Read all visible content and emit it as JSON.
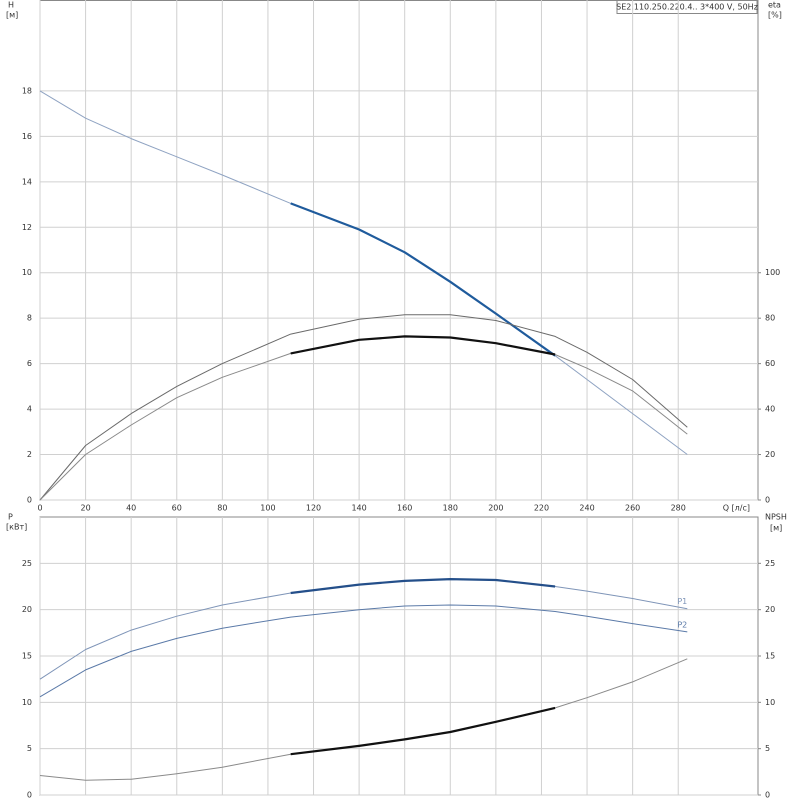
{
  "chart_data": [
    {
      "type": "line",
      "title": "SE2.110.250.220.4.. 3*400 V, 50Hz",
      "y_label": "H",
      "y_unit": "[м]",
      "y2_label": "eta",
      "y2_unit": "[%]",
      "x_label": "Q [л/с]",
      "x": [
        0,
        20,
        40,
        60,
        80,
        110,
        140,
        160,
        180,
        200,
        226,
        240,
        260,
        284
      ],
      "xlim": [
        0,
        315
      ],
      "xticks": [
        0,
        20,
        40,
        60,
        80,
        100,
        120,
        140,
        160,
        180,
        200,
        220,
        240,
        260,
        280
      ],
      "ylim": [
        0,
        22
      ],
      "yticks": [
        0,
        2,
        4,
        6,
        8,
        10,
        12,
        14,
        16,
        18
      ],
      "y2lim": [
        0,
        220
      ],
      "y2ticks": [
        0,
        20,
        40,
        60,
        80,
        100
      ],
      "grid": true,
      "duty_range": [
        110,
        226
      ],
      "series": [
        {
          "color": "#8fa3c2",
          "duty_color": "#1f5b9c",
          "values": [
            18,
            16.8,
            15.9,
            15.1,
            14.3,
            13.05,
            11.9,
            10.9,
            9.6,
            8.2,
            6.35,
            5.3,
            3.8,
            2.0
          ]
        },
        {
          "color": "#6a6a6a",
          "axis": "y2",
          "values": [
            0,
            24,
            38,
            50,
            60,
            73,
            79.5,
            81.5,
            81.5,
            79,
            72,
            65,
            53,
            32
          ]
        },
        {
          "color": "#8a8a8a",
          "duty_color": "#111111",
          "axis": "y2",
          "values": [
            0,
            20,
            33,
            45,
            54,
            64.5,
            70.5,
            72,
            71.5,
            69,
            64,
            58,
            48,
            29
          ]
        }
      ]
    },
    {
      "type": "line",
      "y_label": "P",
      "y_unit": "[кВт]",
      "y2_label": "NPSH",
      "y2_unit": "[м]",
      "x": [
        0,
        20,
        40,
        60,
        80,
        110,
        140,
        160,
        180,
        200,
        226,
        240,
        260,
        284
      ],
      "xlim": [
        0,
        315
      ],
      "xticks": [
        0,
        20,
        40,
        60,
        80,
        100,
        120,
        140,
        160,
        180,
        200,
        220,
        240,
        260,
        280
      ],
      "ylim": [
        0,
        30
      ],
      "yticks": [
        0,
        5,
        10,
        15,
        20,
        25
      ],
      "y2lim": [
        0,
        30
      ],
      "y2ticks": [
        0,
        5,
        10,
        15,
        20,
        25
      ],
      "grid": true,
      "duty_range": [
        110,
        226
      ],
      "series": [
        {
          "name": "P1",
          "color": "#7f95b8",
          "duty_color": "#244f8a",
          "values": [
            12.5,
            15.7,
            17.8,
            19.3,
            20.5,
            21.8,
            22.7,
            23.1,
            23.3,
            23.2,
            22.5,
            22.0,
            21.2,
            20.1
          ]
        },
        {
          "name": "P2",
          "color": "#5b7aa8",
          "values": [
            10.6,
            13.5,
            15.5,
            16.9,
            18.0,
            19.2,
            20.0,
            20.4,
            20.5,
            20.4,
            19.8,
            19.3,
            18.5,
            17.6
          ]
        },
        {
          "color": "#8a8a8a",
          "duty_color": "#111111",
          "axis": "y2",
          "values": [
            2.1,
            1.6,
            1.7,
            2.3,
            3.0,
            4.4,
            5.3,
            6.0,
            6.8,
            7.9,
            9.4,
            10.5,
            12.2,
            14.7
          ]
        }
      ]
    }
  ]
}
